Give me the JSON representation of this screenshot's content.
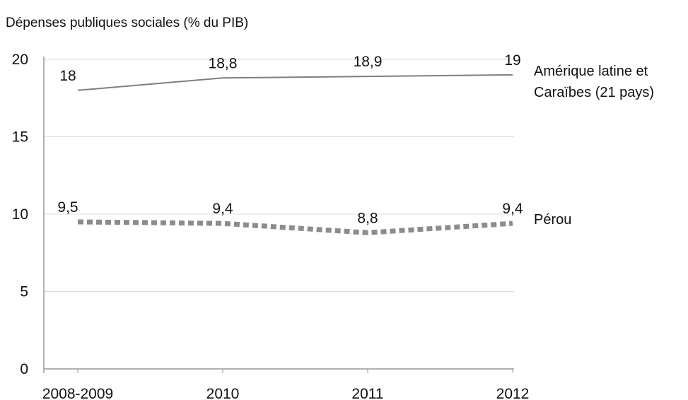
{
  "chart_data": {
    "type": "line",
    "title": "Dépenses publiques sociales (% du PIB)",
    "categories": [
      "2008-2009",
      "2010",
      "2011",
      "2012"
    ],
    "series": [
      {
        "name": "Amérique latine et Caraïbes (21 pays)",
        "color": "#7f7f7f",
        "style": "solid",
        "values": [
          18,
          18.8,
          18.9,
          19
        ],
        "value_labels": [
          "18",
          "18,8",
          "18,9",
          "19"
        ]
      },
      {
        "name": "Pérou",
        "color": "#8c8c8c",
        "style": "dotted",
        "values": [
          9.5,
          9.4,
          8.8,
          9.4
        ],
        "value_labels": [
          "9,5",
          "9,4",
          "8,8",
          "9,4"
        ]
      }
    ],
    "ylim": [
      0,
      20
    ],
    "yticks": [
      0,
      5,
      10,
      15,
      20
    ],
    "grid": true
  }
}
